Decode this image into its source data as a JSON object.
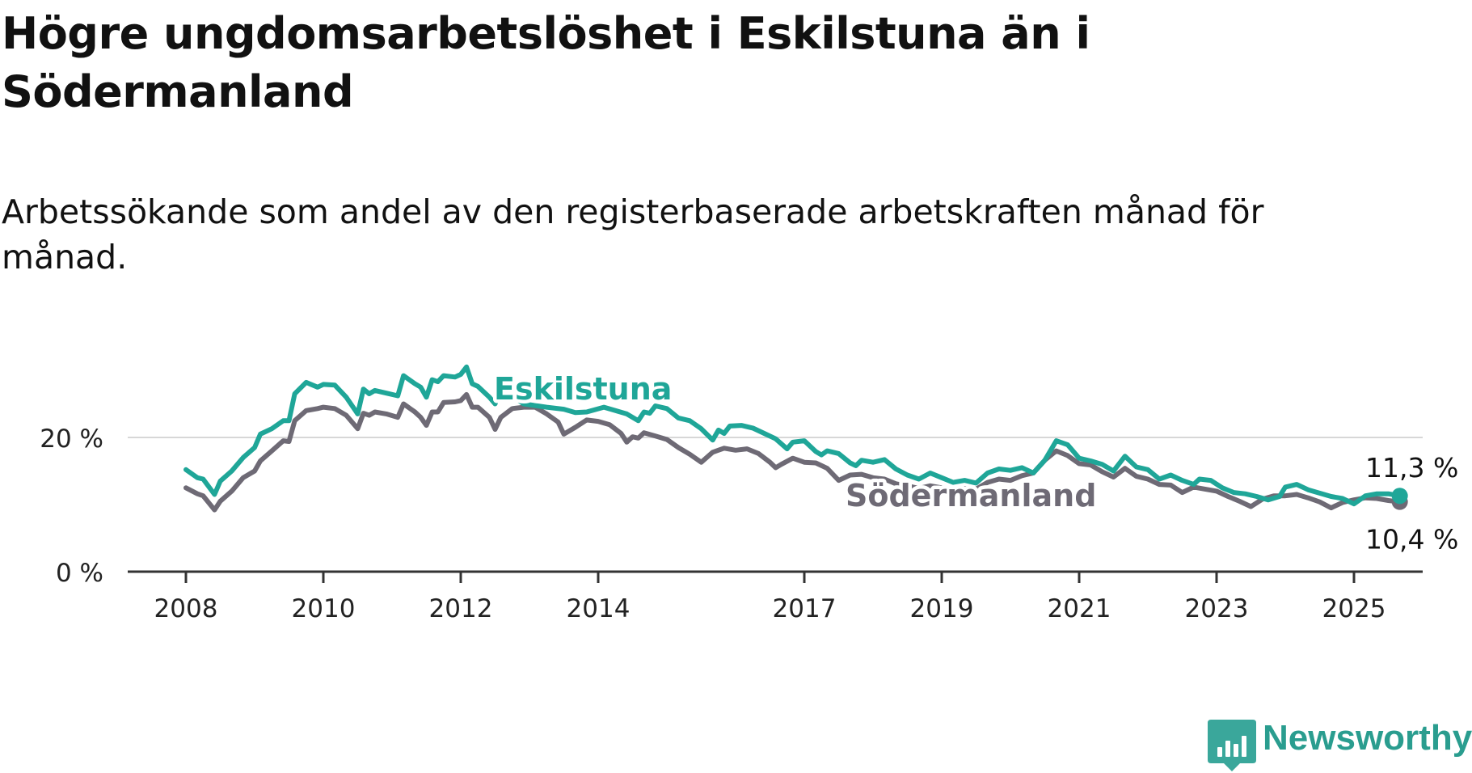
{
  "header": {
    "title": "Högre ungdomsarbetslöshet i Eskilstuna än i Södermanland",
    "subtitle": "Arbetssökande som andel av den registerbaserade arbetskraften månad för månad."
  },
  "brand": {
    "name": "Newsworthy",
    "icon": "newsworthy-logo-icon",
    "color": "#3aa79b"
  },
  "chart_data": {
    "type": "line",
    "x_axis": {
      "ticks": [
        "2008",
        "2010",
        "2012",
        "2014",
        "2017",
        "2019",
        "2021",
        "2023",
        "2025"
      ],
      "range": [
        "2008-01",
        "2025-12"
      ]
    },
    "y_axis": {
      "ticks": [
        "0 %",
        "20 %"
      ],
      "ylim": [
        0,
        32
      ],
      "gridlines": [
        20
      ]
    },
    "grid": "horizontal at 20 %",
    "series": [
      {
        "name": "Eskilstuna",
        "color": "#1fa698",
        "end_label": "11,3 %",
        "end_value": 11.3,
        "points": [
          [
            "2008-01",
            15.2
          ],
          [
            "2008-03",
            14.0
          ],
          [
            "2008-04",
            13.8
          ],
          [
            "2008-06",
            11.5
          ],
          [
            "2008-07",
            13.5
          ],
          [
            "2008-09",
            15.0
          ],
          [
            "2008-11",
            17.0
          ],
          [
            "2009-01",
            18.5
          ],
          [
            "2009-02",
            20.5
          ],
          [
            "2009-04",
            21.3
          ],
          [
            "2009-06",
            22.5
          ],
          [
            "2009-07",
            22.5
          ],
          [
            "2009-08",
            26.5
          ],
          [
            "2009-10",
            28.2
          ],
          [
            "2009-12",
            27.5
          ],
          [
            "2010-01",
            27.9
          ],
          [
            "2010-03",
            27.8
          ],
          [
            "2010-05",
            26.0
          ],
          [
            "2010-07",
            23.5
          ],
          [
            "2010-08",
            27.2
          ],
          [
            "2010-09",
            26.5
          ],
          [
            "2010-10",
            27.0
          ],
          [
            "2010-12",
            26.6
          ],
          [
            "2011-02",
            26.2
          ],
          [
            "2011-03",
            29.2
          ],
          [
            "2011-05",
            28.0
          ],
          [
            "2011-06",
            27.5
          ],
          [
            "2011-07",
            26.0
          ],
          [
            "2011-08",
            28.6
          ],
          [
            "2011-09",
            28.3
          ],
          [
            "2011-10",
            29.2
          ],
          [
            "2011-12",
            29.0
          ],
          [
            "2012-01",
            29.4
          ],
          [
            "2012-02",
            30.5
          ],
          [
            "2012-03",
            28.0
          ],
          [
            "2012-04",
            27.6
          ],
          [
            "2012-06",
            26.0
          ],
          [
            "2012-07",
            25.0
          ],
          [
            "2012-08",
            27.3
          ],
          [
            "2012-12",
            25.0
          ],
          [
            "2013-04",
            24.5
          ],
          [
            "2013-07",
            24.2
          ],
          [
            "2013-09",
            23.7
          ],
          [
            "2013-11",
            23.8
          ],
          [
            "2014-02",
            24.5
          ],
          [
            "2014-04",
            24.0
          ],
          [
            "2014-06",
            23.5
          ],
          [
            "2014-08",
            22.5
          ],
          [
            "2014-09",
            23.8
          ],
          [
            "2014-10",
            23.6
          ],
          [
            "2014-11",
            24.7
          ],
          [
            "2015-01",
            24.3
          ],
          [
            "2015-03",
            22.9
          ],
          [
            "2015-05",
            22.5
          ],
          [
            "2015-07",
            21.3
          ],
          [
            "2015-09",
            19.6
          ],
          [
            "2015-10",
            21.1
          ],
          [
            "2015-11",
            20.6
          ],
          [
            "2015-12",
            21.7
          ],
          [
            "2016-02",
            21.8
          ],
          [
            "2016-04",
            21.4
          ],
          [
            "2016-06",
            20.6
          ],
          [
            "2016-08",
            19.8
          ],
          [
            "2016-10",
            18.3
          ],
          [
            "2016-11",
            19.3
          ],
          [
            "2017-01",
            19.5
          ],
          [
            "2017-03",
            17.9
          ],
          [
            "2017-04",
            17.4
          ],
          [
            "2017-05",
            18.0
          ],
          [
            "2017-07",
            17.6
          ],
          [
            "2017-09",
            16.2
          ],
          [
            "2017-10",
            15.8
          ],
          [
            "2017-11",
            16.6
          ],
          [
            "2018-01",
            16.3
          ],
          [
            "2018-03",
            16.7
          ],
          [
            "2018-05",
            15.3
          ],
          [
            "2018-07",
            14.4
          ],
          [
            "2018-09",
            13.8
          ],
          [
            "2018-11",
            14.7
          ],
          [
            "2019-01",
            14.0
          ],
          [
            "2019-03",
            13.3
          ],
          [
            "2019-05",
            13.6
          ],
          [
            "2019-07",
            13.2
          ],
          [
            "2019-09",
            14.7
          ],
          [
            "2019-11",
            15.3
          ],
          [
            "2020-01",
            15.1
          ],
          [
            "2020-03",
            15.5
          ],
          [
            "2020-05",
            14.7
          ],
          [
            "2020-07",
            16.6
          ],
          [
            "2020-09",
            19.5
          ],
          [
            "2020-11",
            18.9
          ],
          [
            "2021-01",
            16.9
          ],
          [
            "2021-03",
            16.5
          ],
          [
            "2021-05",
            16.0
          ],
          [
            "2021-07",
            15.0
          ],
          [
            "2021-09",
            17.2
          ],
          [
            "2021-11",
            15.6
          ],
          [
            "2022-01",
            15.2
          ],
          [
            "2022-03",
            13.8
          ],
          [
            "2022-05",
            14.4
          ],
          [
            "2022-07",
            13.6
          ],
          [
            "2022-09",
            13.0
          ],
          [
            "2022-10",
            13.8
          ],
          [
            "2022-12",
            13.6
          ],
          [
            "2023-02",
            12.5
          ],
          [
            "2023-04",
            11.8
          ],
          [
            "2023-06",
            11.6
          ],
          [
            "2023-08",
            11.2
          ],
          [
            "2023-10",
            10.7
          ],
          [
            "2023-12",
            11.2
          ],
          [
            "2024-01",
            12.6
          ],
          [
            "2024-03",
            13.0
          ],
          [
            "2024-05",
            12.2
          ],
          [
            "2024-07",
            11.7
          ],
          [
            "2024-09",
            11.2
          ],
          [
            "2024-11",
            10.9
          ],
          [
            "2025-01",
            10.1
          ],
          [
            "2025-03",
            11.3
          ],
          [
            "2025-05",
            11.6
          ],
          [
            "2025-07",
            11.6
          ],
          [
            "2025-09",
            11.3
          ]
        ]
      },
      {
        "name": "Södermanland",
        "color": "#6e6a75",
        "end_label": "10,4 %",
        "end_value": 10.4,
        "points": [
          [
            "2008-01",
            12.5
          ],
          [
            "2008-03",
            11.6
          ],
          [
            "2008-04",
            11.3
          ],
          [
            "2008-06",
            9.2
          ],
          [
            "2008-07",
            10.5
          ],
          [
            "2008-09",
            12.0
          ],
          [
            "2008-11",
            14.0
          ],
          [
            "2009-01",
            15.0
          ],
          [
            "2009-02",
            16.5
          ],
          [
            "2009-04",
            18.0
          ],
          [
            "2009-06",
            19.5
          ],
          [
            "2009-07",
            19.4
          ],
          [
            "2009-08",
            22.5
          ],
          [
            "2009-10",
            24.0
          ],
          [
            "2009-12",
            24.3
          ],
          [
            "2010-01",
            24.5
          ],
          [
            "2010-03",
            24.3
          ],
          [
            "2010-05",
            23.3
          ],
          [
            "2010-07",
            21.3
          ],
          [
            "2010-08",
            23.6
          ],
          [
            "2010-09",
            23.3
          ],
          [
            "2010-10",
            23.8
          ],
          [
            "2010-12",
            23.5
          ],
          [
            "2011-02",
            23.0
          ],
          [
            "2011-03",
            25.0
          ],
          [
            "2011-05",
            23.8
          ],
          [
            "2011-06",
            23.0
          ],
          [
            "2011-07",
            21.8
          ],
          [
            "2011-08",
            23.8
          ],
          [
            "2011-09",
            23.8
          ],
          [
            "2011-10",
            25.2
          ],
          [
            "2011-12",
            25.3
          ],
          [
            "2012-01",
            25.5
          ],
          [
            "2012-02",
            26.4
          ],
          [
            "2012-03",
            24.5
          ],
          [
            "2012-04",
            24.5
          ],
          [
            "2012-06",
            23.0
          ],
          [
            "2012-07",
            21.2
          ],
          [
            "2012-08",
            23.0
          ],
          [
            "2012-10",
            24.3
          ],
          [
            "2012-12",
            24.5
          ],
          [
            "2013-02",
            24.5
          ],
          [
            "2013-04",
            23.5
          ],
          [
            "2013-06",
            22.3
          ],
          [
            "2013-07",
            20.5
          ],
          [
            "2013-09",
            21.5
          ],
          [
            "2013-11",
            22.6
          ],
          [
            "2014-01",
            22.4
          ],
          [
            "2014-03",
            21.9
          ],
          [
            "2014-05",
            20.6
          ],
          [
            "2014-06",
            19.3
          ],
          [
            "2014-07",
            20.1
          ],
          [
            "2014-08",
            19.9
          ],
          [
            "2014-09",
            20.7
          ],
          [
            "2014-11",
            20.2
          ],
          [
            "2015-01",
            19.7
          ],
          [
            "2015-03",
            18.5
          ],
          [
            "2015-05",
            17.5
          ],
          [
            "2015-07",
            16.3
          ],
          [
            "2015-09",
            17.8
          ],
          [
            "2015-11",
            18.4
          ],
          [
            "2016-01",
            18.1
          ],
          [
            "2016-03",
            18.3
          ],
          [
            "2016-05",
            17.6
          ],
          [
            "2016-07",
            16.3
          ],
          [
            "2016-08",
            15.5
          ],
          [
            "2016-09",
            16.0
          ],
          [
            "2016-11",
            16.9
          ],
          [
            "2017-01",
            16.3
          ],
          [
            "2017-03",
            16.2
          ],
          [
            "2017-05",
            15.4
          ],
          [
            "2017-07",
            13.6
          ],
          [
            "2017-09",
            14.4
          ],
          [
            "2017-11",
            14.5
          ],
          [
            "2018-01",
            14.0
          ],
          [
            "2018-03",
            13.8
          ],
          [
            "2018-05",
            13.1
          ],
          [
            "2018-07",
            12.8
          ],
          [
            "2018-09",
            12.4
          ],
          [
            "2018-11",
            12.8
          ],
          [
            "2019-01",
            12.5
          ],
          [
            "2019-03",
            12.2
          ],
          [
            "2019-05",
            12.4
          ],
          [
            "2019-07",
            12.3
          ],
          [
            "2019-09",
            13.3
          ],
          [
            "2019-11",
            13.8
          ],
          [
            "2020-01",
            13.6
          ],
          [
            "2020-03",
            14.3
          ],
          [
            "2020-05",
            14.7
          ],
          [
            "2020-07",
            16.6
          ],
          [
            "2020-09",
            18.0
          ],
          [
            "2020-11",
            17.3
          ],
          [
            "2021-01",
            16.1
          ],
          [
            "2021-03",
            15.9
          ],
          [
            "2021-05",
            14.9
          ],
          [
            "2021-07",
            14.1
          ],
          [
            "2021-09",
            15.4
          ],
          [
            "2021-11",
            14.2
          ],
          [
            "2022-01",
            13.8
          ],
          [
            "2022-03",
            13.0
          ],
          [
            "2022-05",
            12.9
          ],
          [
            "2022-07",
            11.8
          ],
          [
            "2022-09",
            12.6
          ],
          [
            "2022-11",
            12.3
          ],
          [
            "2023-01",
            12.0
          ],
          [
            "2023-03",
            11.2
          ],
          [
            "2023-05",
            10.5
          ],
          [
            "2023-07",
            9.7
          ],
          [
            "2023-09",
            10.8
          ],
          [
            "2023-11",
            11.3
          ],
          [
            "2024-01",
            11.3
          ],
          [
            "2024-03",
            11.5
          ],
          [
            "2024-05",
            11.0
          ],
          [
            "2024-07",
            10.4
          ],
          [
            "2024-09",
            9.5
          ],
          [
            "2024-11",
            10.3
          ],
          [
            "2025-01",
            10.7
          ],
          [
            "2025-03",
            11.0
          ],
          [
            "2025-05",
            10.9
          ],
          [
            "2025-07",
            10.6
          ],
          [
            "2025-09",
            10.4
          ]
        ]
      }
    ]
  }
}
